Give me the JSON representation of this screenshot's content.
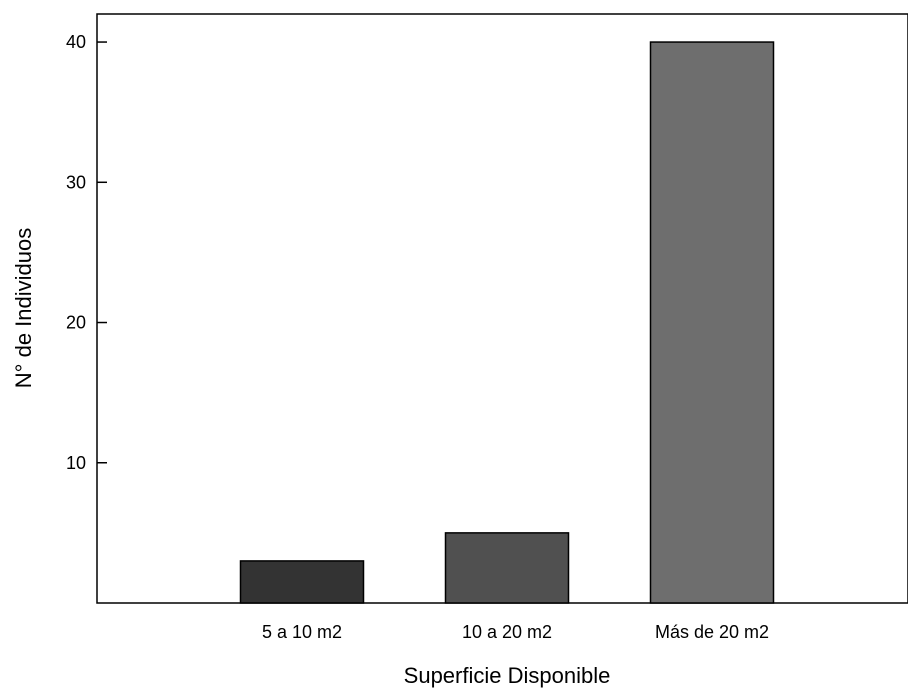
{
  "chart_data": {
    "type": "bar",
    "title": "",
    "xlabel": "Superficie Disponible",
    "ylabel": "N° de Individuos",
    "categories": [
      "5 a 10 m2",
      "10 a 20 m2",
      "Más de 20 m2"
    ],
    "values": [
      3,
      5,
      40
    ],
    "ylim": [
      0,
      42
    ],
    "yticks": [
      10,
      20,
      30,
      40
    ],
    "bar_colors": [
      "#333333",
      "#505050",
      "#6e6e6e"
    ],
    "grid": false,
    "legend": "none"
  }
}
